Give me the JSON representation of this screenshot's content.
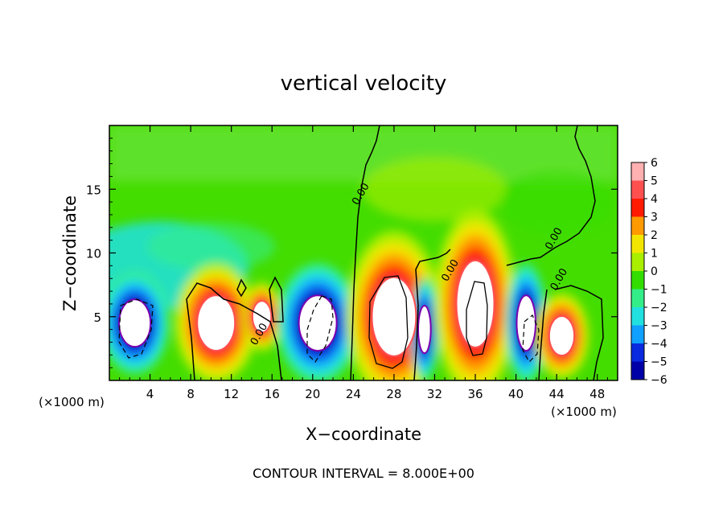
{
  "chart_data": {
    "type": "heatmap",
    "title": "vertical velocity",
    "xlabel": "X−coordinate",
    "ylabel": "Z−coordinate",
    "x_unit_left": "(×1000 m)",
    "x_unit_right": "(×1000 m)",
    "footer": "CONTOUR INTERVAL = 8.000E+00",
    "xlim": [
      0,
      50
    ],
    "ylim": [
      0,
      20
    ],
    "x_ticks": [
      4,
      8,
      12,
      16,
      20,
      24,
      28,
      32,
      36,
      40,
      44,
      48
    ],
    "x_tick_labels": [
      "4",
      "8",
      "12",
      "16",
      "20",
      "24",
      "28",
      "32",
      "36",
      "40",
      "44",
      "48"
    ],
    "y_ticks": [
      5,
      10,
      15
    ],
    "y_tick_labels": [
      "5",
      "10",
      "15"
    ],
    "colorbar": {
      "levels": [
        6,
        5,
        4,
        3,
        2,
        1,
        0,
        -1,
        -2,
        -3,
        -4,
        -5,
        -6
      ],
      "labels": [
        "6",
        "5",
        "4",
        "3",
        "2",
        "1",
        "0",
        "−1",
        "−2",
        "−3",
        "−4",
        "−5",
        "−6"
      ],
      "colors": [
        "#ffb0b0",
        "#ff5050",
        "#ff1a00",
        "#ff9a00",
        "#f2e600",
        "#aaee00",
        "#33dd00",
        "#33ee88",
        "#22e0e0",
        "#10a0ff",
        "#0a2ae0",
        "#0000a8",
        "#7a00b0"
      ]
    },
    "contour_labels": [
      {
        "text": "0.00",
        "x": 25,
        "z": 14.5
      },
      {
        "text": "0.00",
        "x": 15,
        "z": 3.5
      },
      {
        "text": "0.00",
        "x": 33.8,
        "z": 8.5
      },
      {
        "text": "0.00",
        "x": 44,
        "z": 11.0
      },
      {
        "text": "0.00",
        "x": 44.5,
        "z": 7.8
      }
    ],
    "features": [
      {
        "sign": "negative",
        "x": 2.5,
        "z": 4.5,
        "w": 5,
        "h": 6
      },
      {
        "sign": "positive",
        "x": 10.5,
        "z": 4.5,
        "w": 6,
        "h": 7
      },
      {
        "sign": "positive",
        "x": 15,
        "z": 5,
        "w": 3,
        "h": 4
      },
      {
        "sign": "negative",
        "x": 20.5,
        "z": 4.5,
        "w": 6,
        "h": 7
      },
      {
        "sign": "positive",
        "x": 28,
        "z": 5,
        "w": 7,
        "h": 10
      },
      {
        "sign": "negative",
        "x": 31,
        "z": 4,
        "w": 2,
        "h": 6
      },
      {
        "sign": "positive",
        "x": 36,
        "z": 6,
        "w": 6,
        "h": 11
      },
      {
        "sign": "negative",
        "x": 41,
        "z": 4.5,
        "w": 3,
        "h": 7
      },
      {
        "sign": "positive",
        "x": 44.5,
        "z": 3.5,
        "w": 4,
        "h": 5
      }
    ]
  }
}
